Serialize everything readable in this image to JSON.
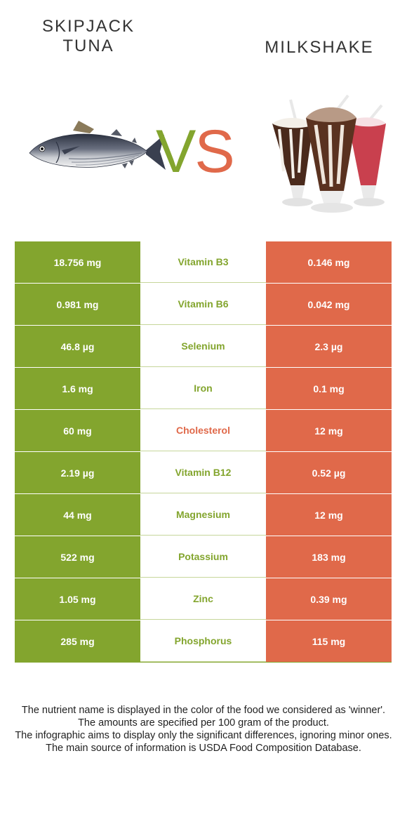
{
  "header": {
    "left_title_line1": "SKIPJACK",
    "left_title_line2": "TUNA",
    "right_title": "MILKSHAKE",
    "vs_v": "V",
    "vs_s": "S"
  },
  "colors": {
    "left_food": "#83a52e",
    "right_food": "#e0694a"
  },
  "rows": [
    {
      "left": "18.756 mg",
      "nutrient": "Vitamin B3",
      "right": "0.146 mg",
      "winner": "left"
    },
    {
      "left": "0.981 mg",
      "nutrient": "Vitamin B6",
      "right": "0.042 mg",
      "winner": "left"
    },
    {
      "left": "46.8 µg",
      "nutrient": "Selenium",
      "right": "2.3 µg",
      "winner": "left"
    },
    {
      "left": "1.6 mg",
      "nutrient": "Iron",
      "right": "0.1 mg",
      "winner": "left"
    },
    {
      "left": "60 mg",
      "nutrient": "Cholesterol",
      "right": "12 mg",
      "winner": "right"
    },
    {
      "left": "2.19 µg",
      "nutrient": "Vitamin B12",
      "right": "0.52 µg",
      "winner": "left"
    },
    {
      "left": "44 mg",
      "nutrient": "Magnesium",
      "right": "12 mg",
      "winner": "left"
    },
    {
      "left": "522 mg",
      "nutrient": "Potassium",
      "right": "183 mg",
      "winner": "left"
    },
    {
      "left": "1.05 mg",
      "nutrient": "Zinc",
      "right": "0.39 mg",
      "winner": "left"
    },
    {
      "left": "285 mg",
      "nutrient": "Phosphorus",
      "right": "115 mg",
      "winner": "left"
    }
  ],
  "footer": {
    "line1": "The nutrient name is displayed in the color of the food we considered as 'winner'.",
    "line2": "The amounts are specified per 100 gram of the product.",
    "line3": "The infographic aims to display only the significant differences, ignoring minor ones.",
    "line4": "The main source of information is USDA Food Composition Database."
  }
}
